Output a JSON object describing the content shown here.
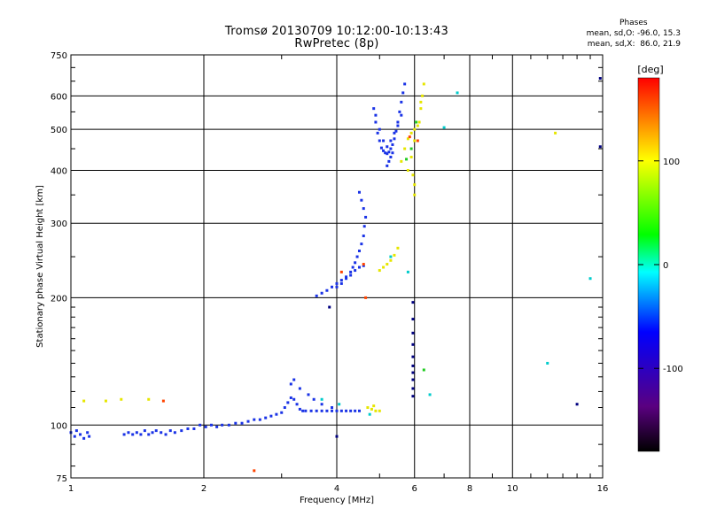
{
  "header": {
    "title_line1": "Tromsø 20130709 10:12:00-10:13:43",
    "title_line2": "RwPretec (8p)"
  },
  "phase_info": {
    "title": "Phases",
    "line_o": "mean, sd,O: -96.0, 15.3",
    "line_x": "mean, sd,X:  86.0, 21.9"
  },
  "colorbar": {
    "label": "[deg]",
    "range": [
      -180,
      180
    ],
    "ticks": [
      100,
      0,
      -100
    ],
    "colormap": [
      "#000000",
      "#5a0080",
      "#0000ff",
      "#00ffff",
      "#00ff00",
      "#ffff00",
      "#ff0000"
    ]
  },
  "chart_data": {
    "type": "scatter",
    "title": "Tromsø 20130709 10:12:00-10:13:43",
    "subtitle": "RwPretec (8p)",
    "xlabel": "Frequency [MHz]",
    "ylabel": "Stationary phase Virtual Height [km]",
    "x_scale": "log",
    "y_scale": "log",
    "xlim": [
      1,
      16
    ],
    "ylim": [
      75,
      750
    ],
    "x_ticks": [
      1,
      2,
      4,
      6,
      8,
      10,
      16
    ],
    "y_ticks": [
      75,
      100,
      200,
      300,
      400,
      500,
      600,
      750
    ],
    "grid": true,
    "series": [
      {
        "color": "#1a33e6",
        "points": [
          [
            1.0,
            96
          ],
          [
            1.02,
            94
          ],
          [
            1.03,
            97
          ],
          [
            1.05,
            95
          ],
          [
            1.07,
            93
          ],
          [
            1.09,
            96
          ],
          [
            1.1,
            94
          ],
          [
            1.32,
            95
          ],
          [
            1.35,
            96
          ],
          [
            1.38,
            95
          ],
          [
            1.41,
            96
          ],
          [
            1.44,
            95
          ],
          [
            1.47,
            97
          ],
          [
            1.5,
            95
          ],
          [
            1.53,
            96
          ],
          [
            1.56,
            97
          ],
          [
            1.6,
            96
          ],
          [
            1.64,
            95
          ],
          [
            1.68,
            97
          ],
          [
            1.72,
            96
          ],
          [
            1.78,
            97
          ],
          [
            1.84,
            98
          ],
          [
            1.9,
            98
          ],
          [
            1.96,
            100
          ],
          [
            2.02,
            99
          ],
          [
            2.08,
            100
          ],
          [
            2.14,
            99
          ],
          [
            2.2,
            100
          ],
          [
            2.28,
            100
          ],
          [
            2.36,
            101
          ],
          [
            2.44,
            101
          ],
          [
            2.52,
            102
          ],
          [
            2.6,
            103
          ],
          [
            2.68,
            103
          ],
          [
            2.76,
            104
          ],
          [
            2.84,
            105
          ],
          [
            2.92,
            106
          ],
          [
            3.0,
            107
          ],
          [
            3.05,
            110
          ],
          [
            3.1,
            113
          ],
          [
            3.15,
            116
          ],
          [
            3.2,
            115
          ],
          [
            3.25,
            112
          ],
          [
            3.3,
            109
          ],
          [
            3.35,
            108
          ],
          [
            3.4,
            108
          ],
          [
            3.5,
            108
          ],
          [
            3.6,
            108
          ],
          [
            3.7,
            108
          ],
          [
            3.8,
            108
          ],
          [
            3.9,
            108
          ],
          [
            4.0,
            108
          ],
          [
            4.1,
            108
          ],
          [
            4.2,
            108
          ],
          [
            4.3,
            108
          ],
          [
            4.4,
            108
          ],
          [
            4.5,
            108
          ],
          [
            3.15,
            125
          ],
          [
            3.2,
            128
          ],
          [
            3.3,
            122
          ],
          [
            3.45,
            118
          ],
          [
            3.55,
            115
          ],
          [
            3.7,
            112
          ],
          [
            3.9,
            110
          ],
          [
            3.6,
            202
          ],
          [
            3.7,
            205
          ],
          [
            3.8,
            208
          ],
          [
            3.9,
            212
          ],
          [
            4.0,
            216
          ],
          [
            4.1,
            220
          ],
          [
            4.2,
            224
          ],
          [
            4.3,
            230
          ],
          [
            4.35,
            236
          ],
          [
            4.4,
            242
          ],
          [
            4.45,
            250
          ],
          [
            4.5,
            258
          ],
          [
            4.55,
            268
          ],
          [
            4.6,
            280
          ],
          [
            4.62,
            295
          ],
          [
            4.65,
            310
          ],
          [
            4.6,
            325
          ],
          [
            4.55,
            340
          ],
          [
            4.5,
            355
          ],
          [
            4.0,
            212
          ],
          [
            4.1,
            216
          ],
          [
            4.2,
            222
          ],
          [
            4.3,
            226
          ],
          [
            4.4,
            232
          ],
          [
            4.5,
            236
          ],
          [
            4.6,
            238
          ],
          [
            4.85,
            560
          ],
          [
            4.9,
            520
          ],
          [
            4.95,
            490
          ],
          [
            5.0,
            470
          ],
          [
            5.05,
            452
          ],
          [
            5.1,
            445
          ],
          [
            5.15,
            440
          ],
          [
            5.2,
            438
          ],
          [
            5.25,
            442
          ],
          [
            5.3,
            450
          ],
          [
            5.35,
            460
          ],
          [
            5.4,
            475
          ],
          [
            5.45,
            495
          ],
          [
            5.5,
            520
          ],
          [
            5.55,
            550
          ],
          [
            5.6,
            580
          ],
          [
            5.65,
            610
          ],
          [
            5.7,
            640
          ],
          [
            4.9,
            540
          ],
          [
            5.0,
            500
          ],
          [
            5.1,
            470
          ],
          [
            5.2,
            455
          ],
          [
            5.3,
            470
          ],
          [
            5.4,
            490
          ],
          [
            5.5,
            510
          ],
          [
            5.6,
            540
          ],
          [
            5.25,
            420
          ],
          [
            5.3,
            430
          ],
          [
            5.2,
            410
          ],
          [
            5.35,
            440
          ]
        ]
      },
      {
        "color": "#e6e600",
        "points": [
          [
            4.7,
            110
          ],
          [
            4.8,
            109
          ],
          [
            4.9,
            108
          ],
          [
            5.0,
            108
          ],
          [
            4.85,
            111
          ],
          [
            5.0,
            232
          ],
          [
            5.1,
            236
          ],
          [
            5.2,
            240
          ],
          [
            5.3,
            245
          ],
          [
            5.4,
            252
          ],
          [
            5.5,
            262
          ],
          [
            5.6,
            420
          ],
          [
            5.7,
            450
          ],
          [
            5.8,
            475
          ],
          [
            5.9,
            490
          ],
          [
            6.0,
            500
          ],
          [
            6.1,
            510
          ],
          [
            6.2,
            560
          ],
          [
            6.25,
            600
          ],
          [
            6.3,
            640
          ],
          [
            5.8,
            400
          ],
          [
            5.9,
            430
          ],
          [
            6.0,
            470
          ],
          [
            6.15,
            520
          ],
          [
            6.2,
            580
          ],
          [
            6.0,
            350
          ],
          [
            6.0,
            370
          ],
          [
            5.95,
            390
          ],
          [
            12.5,
            490
          ],
          [
            1.07,
            114
          ],
          [
            1.2,
            114
          ],
          [
            1.3,
            115
          ],
          [
            1.5,
            115
          ]
        ]
      },
      {
        "color": "#00cccc",
        "points": [
          [
            4.75,
            106
          ],
          [
            5.3,
            250
          ],
          [
            5.8,
            230
          ],
          [
            7.0,
            505
          ],
          [
            7.5,
            610
          ],
          [
            12.0,
            140
          ],
          [
            15.0,
            222
          ],
          [
            6.5,
            118
          ],
          [
            3.7,
            115
          ],
          [
            4.05,
            112
          ]
        ]
      },
      {
        "color": "#ff4400",
        "points": [
          [
            4.6,
            240
          ],
          [
            4.65,
            200
          ],
          [
            5.85,
            480
          ],
          [
            6.1,
            470
          ],
          [
            1.62,
            114
          ],
          [
            2.6,
            78
          ],
          [
            4.1,
            230
          ]
        ]
      },
      {
        "color": "#22cc22",
        "points": [
          [
            6.3,
            135
          ],
          [
            6.05,
            520
          ],
          [
            5.9,
            450
          ],
          [
            5.75,
            425
          ]
        ]
      },
      {
        "color": "#000080",
        "points": [
          [
            5.95,
            195
          ],
          [
            5.95,
            178
          ],
          [
            5.95,
            165
          ],
          [
            5.95,
            155
          ],
          [
            5.95,
            145
          ],
          [
            5.95,
            138
          ],
          [
            5.95,
            133
          ],
          [
            5.95,
            128
          ],
          [
            5.95,
            122
          ],
          [
            5.95,
            117
          ],
          [
            4.0,
            94
          ],
          [
            3.85,
            190
          ],
          [
            15.8,
            660
          ],
          [
            15.8,
            455
          ],
          [
            14.0,
            112
          ]
        ]
      }
    ]
  }
}
